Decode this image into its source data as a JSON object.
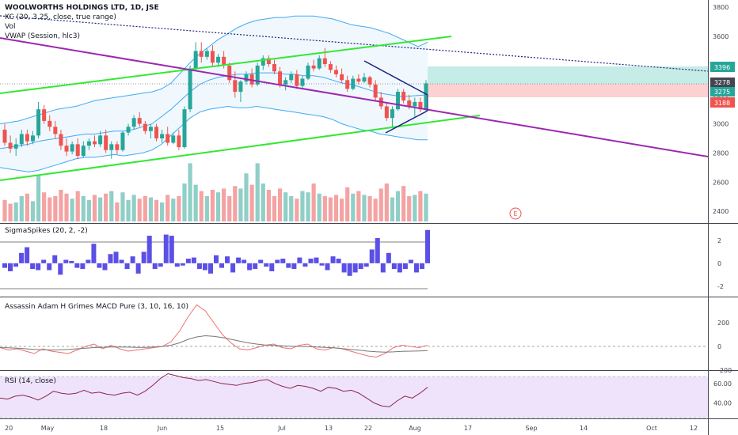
{
  "header": {
    "title": "WOOLWORTHS HOLDINGS LTD, 1D, JSE",
    "kc": "KC (20, 3.25, close, true range)",
    "vol": "Vol",
    "vwap": "VWAP (Session, hlc3)"
  },
  "panes": {
    "sigma": "SigmaSpikes (20, 2, -2)",
    "macd": "Assassin Adam H Grimes MACD Pure (3, 10, 16, 10)",
    "rsi": "RSI (14, close)"
  },
  "axes": {
    "price_ticks": [
      "3800",
      "3600",
      "3400",
      "3200",
      "3000",
      "2800",
      "2600",
      "2400"
    ],
    "sigma_ticks": [
      "2",
      "0",
      "-2"
    ],
    "macd_ticks": [
      "200",
      "0",
      "-200"
    ],
    "rsi_ticks": [
      "60.00",
      "40.00"
    ],
    "date_ticks": [
      "20",
      "May",
      "18",
      "Jun",
      "15",
      "Jul",
      "13",
      "22",
      "Aug",
      "17",
      "Sep",
      "14",
      "Oct",
      "12"
    ]
  },
  "price_badges": [
    "3396",
    "3278",
    "3275",
    "3188"
  ],
  "event_marker": "E",
  "colors": {
    "up": "#26a69a",
    "down": "#ef5350",
    "vol_up": "#8fcfc7",
    "vol_down": "#f4a3a3",
    "trend_green": "#33e833",
    "trend_purple": "#9c27b0",
    "kc": "#3fa9f5",
    "fill_target": "#c5ece6",
    "fill_stop": "#fbd1d1",
    "sigma": "#5b4fe6",
    "macd_red": "#f07070",
    "macd_gray": "#777777",
    "rsi_fill": "#efe3fb",
    "rsi_line": "#8e244d"
  },
  "chart_data": {
    "type": "candlestick",
    "symbol": "WOOLWORTHS HOLDINGS LTD",
    "interval": "1D",
    "exchange": "JSE",
    "ylim": [
      2330,
      3850
    ],
    "candles": [
      {
        "o": 2960,
        "h": 3000,
        "l": 2850,
        "c": 2870
      },
      {
        "o": 2870,
        "h": 2920,
        "l": 2800,
        "c": 2830
      },
      {
        "o": 2830,
        "h": 2900,
        "l": 2780,
        "c": 2860
      },
      {
        "o": 2860,
        "h": 2960,
        "l": 2840,
        "c": 2930
      },
      {
        "o": 2930,
        "h": 2960,
        "l": 2850,
        "c": 2880
      },
      {
        "o": 2880,
        "h": 2950,
        "l": 2860,
        "c": 2920
      },
      {
        "o": 2920,
        "h": 3150,
        "l": 2900,
        "c": 3100
      },
      {
        "o": 3100,
        "h": 3130,
        "l": 3000,
        "c": 3020
      },
      {
        "o": 3020,
        "h": 3060,
        "l": 2950,
        "c": 2980
      },
      {
        "o": 2980,
        "h": 3020,
        "l": 2900,
        "c": 2930
      },
      {
        "o": 2930,
        "h": 2960,
        "l": 2820,
        "c": 2850
      },
      {
        "o": 2850,
        "h": 2900,
        "l": 2780,
        "c": 2810
      },
      {
        "o": 2810,
        "h": 2880,
        "l": 2790,
        "c": 2860
      },
      {
        "o": 2860,
        "h": 2900,
        "l": 2760,
        "c": 2780
      },
      {
        "o": 2780,
        "h": 2880,
        "l": 2770,
        "c": 2850
      },
      {
        "o": 2850,
        "h": 2900,
        "l": 2820,
        "c": 2880
      },
      {
        "o": 2880,
        "h": 2920,
        "l": 2840,
        "c": 2860
      },
      {
        "o": 2860,
        "h": 2950,
        "l": 2840,
        "c": 2920
      },
      {
        "o": 2920,
        "h": 2960,
        "l": 2800,
        "c": 2820
      },
      {
        "o": 2820,
        "h": 2880,
        "l": 2760,
        "c": 2860
      },
      {
        "o": 2860,
        "h": 2880,
        "l": 2790,
        "c": 2820
      },
      {
        "o": 2820,
        "h": 2950,
        "l": 2810,
        "c": 2940
      },
      {
        "o": 2940,
        "h": 3000,
        "l": 2920,
        "c": 2980
      },
      {
        "o": 2980,
        "h": 3060,
        "l": 2960,
        "c": 3040
      },
      {
        "o": 3040,
        "h": 3080,
        "l": 2980,
        "c": 3000
      },
      {
        "o": 3000,
        "h": 3020,
        "l": 2930,
        "c": 2950
      },
      {
        "o": 2950,
        "h": 3000,
        "l": 2900,
        "c": 2980
      },
      {
        "o": 2980,
        "h": 3000,
        "l": 2880,
        "c": 2900
      },
      {
        "o": 2900,
        "h": 2960,
        "l": 2870,
        "c": 2930
      },
      {
        "o": 2930,
        "h": 2980,
        "l": 2850,
        "c": 2870
      },
      {
        "o": 2870,
        "h": 2940,
        "l": 2860,
        "c": 2920
      },
      {
        "o": 2920,
        "h": 2960,
        "l": 2820,
        "c": 2840
      },
      {
        "o": 2840,
        "h": 3120,
        "l": 2830,
        "c": 3100
      },
      {
        "o": 3100,
        "h": 3400,
        "l": 3080,
        "c": 3380
      },
      {
        "o": 3380,
        "h": 3560,
        "l": 3360,
        "c": 3500
      },
      {
        "o": 3500,
        "h": 3560,
        "l": 3420,
        "c": 3460
      },
      {
        "o": 3460,
        "h": 3520,
        "l": 3440,
        "c": 3500
      },
      {
        "o": 3500,
        "h": 3540,
        "l": 3400,
        "c": 3420
      },
      {
        "o": 3420,
        "h": 3480,
        "l": 3390,
        "c": 3460
      },
      {
        "o": 3460,
        "h": 3500,
        "l": 3380,
        "c": 3400
      },
      {
        "o": 3400,
        "h": 3420,
        "l": 3280,
        "c": 3300
      },
      {
        "o": 3300,
        "h": 3360,
        "l": 3180,
        "c": 3220
      },
      {
        "o": 3220,
        "h": 3300,
        "l": 3150,
        "c": 3290
      },
      {
        "o": 3290,
        "h": 3360,
        "l": 3270,
        "c": 3340
      },
      {
        "o": 3340,
        "h": 3380,
        "l": 3250,
        "c": 3270
      },
      {
        "o": 3270,
        "h": 3420,
        "l": 3260,
        "c": 3400
      },
      {
        "o": 3400,
        "h": 3470,
        "l": 3370,
        "c": 3450
      },
      {
        "o": 3450,
        "h": 3470,
        "l": 3390,
        "c": 3410
      },
      {
        "o": 3410,
        "h": 3440,
        "l": 3340,
        "c": 3360
      },
      {
        "o": 3360,
        "h": 3390,
        "l": 3250,
        "c": 3270
      },
      {
        "o": 3270,
        "h": 3320,
        "l": 3230,
        "c": 3300
      },
      {
        "o": 3300,
        "h": 3360,
        "l": 3280,
        "c": 3340
      },
      {
        "o": 3340,
        "h": 3370,
        "l": 3240,
        "c": 3260
      },
      {
        "o": 3260,
        "h": 3330,
        "l": 3240,
        "c": 3310
      },
      {
        "o": 3310,
        "h": 3420,
        "l": 3300,
        "c": 3400
      },
      {
        "o": 3400,
        "h": 3440,
        "l": 3360,
        "c": 3380
      },
      {
        "o": 3380,
        "h": 3470,
        "l": 3370,
        "c": 3450
      },
      {
        "o": 3450,
        "h": 3520,
        "l": 3390,
        "c": 3410
      },
      {
        "o": 3410,
        "h": 3430,
        "l": 3350,
        "c": 3370
      },
      {
        "o": 3370,
        "h": 3400,
        "l": 3320,
        "c": 3340
      },
      {
        "o": 3340,
        "h": 3380,
        "l": 3280,
        "c": 3300
      },
      {
        "o": 3300,
        "h": 3330,
        "l": 3220,
        "c": 3240
      },
      {
        "o": 3240,
        "h": 3330,
        "l": 3230,
        "c": 3310
      },
      {
        "o": 3310,
        "h": 3340,
        "l": 3270,
        "c": 3290
      },
      {
        "o": 3290,
        "h": 3350,
        "l": 3280,
        "c": 3320
      },
      {
        "o": 3320,
        "h": 3330,
        "l": 3250,
        "c": 3270
      },
      {
        "o": 3270,
        "h": 3300,
        "l": 3160,
        "c": 3180
      },
      {
        "o": 3180,
        "h": 3220,
        "l": 3100,
        "c": 3120
      },
      {
        "o": 3120,
        "h": 3140,
        "l": 3020,
        "c": 3040
      },
      {
        "o": 3040,
        "h": 3120,
        "l": 2980,
        "c": 3100
      },
      {
        "o": 3100,
        "h": 3240,
        "l": 3090,
        "c": 3220
      },
      {
        "o": 3220,
        "h": 3240,
        "l": 3140,
        "c": 3160
      },
      {
        "o": 3160,
        "h": 3200,
        "l": 3100,
        "c": 3120
      },
      {
        "o": 3120,
        "h": 3180,
        "l": 3050,
        "c": 3150
      },
      {
        "o": 3150,
        "h": 3180,
        "l": 3080,
        "c": 3100
      },
      {
        "o": 3100,
        "h": 3300,
        "l": 3090,
        "c": 3278
      }
    ],
    "volume": [
      34,
      28,
      30,
      40,
      44,
      32,
      72,
      46,
      38,
      40,
      50,
      44,
      36,
      48,
      40,
      34,
      42,
      38,
      44,
      48,
      30,
      46,
      34,
      42,
      36,
      40,
      38,
      34,
      30,
      42,
      36,
      40,
      60,
      92,
      58,
      48,
      40,
      50,
      46,
      52,
      40,
      56,
      52,
      76,
      58,
      92,
      60,
      50,
      40,
      52,
      46,
      40,
      36,
      48,
      46,
      60,
      44,
      40,
      38,
      42,
      36,
      54,
      44,
      48,
      42,
      40,
      36,
      52,
      60,
      38,
      48,
      56,
      40,
      42,
      48,
      44,
      62
    ],
    "keltner": {
      "upper": [
        3000,
        3010,
        3020,
        3040,
        3060,
        3080,
        3100,
        3110,
        3120,
        3140,
        3160,
        3170,
        3180,
        3190,
        3200,
        3210,
        3220,
        3240,
        3280,
        3350,
        3420,
        3480,
        3530,
        3580,
        3620,
        3660,
        3690,
        3710,
        3720,
        3730,
        3730,
        3740,
        3740,
        3740,
        3730,
        3720,
        3700,
        3680,
        3670,
        3660,
        3640,
        3620,
        3590,
        3560,
        3530,
        3560
      ],
      "middle": [
        2830,
        2840,
        2850,
        2860,
        2880,
        2890,
        2900,
        2910,
        2920,
        2930,
        2930,
        2940,
        2950,
        2950,
        2960,
        2980,
        3000,
        3050,
        3100,
        3160,
        3220,
        3270,
        3300,
        3320,
        3330,
        3340,
        3340,
        3350,
        3350,
        3350,
        3340,
        3340,
        3330,
        3330,
        3320,
        3300,
        3280,
        3270,
        3250,
        3230,
        3210,
        3200,
        3190,
        3190,
        3195,
        3200
      ],
      "lower": [
        2700,
        2690,
        2680,
        2670,
        2680,
        2700,
        2720,
        2740,
        2760,
        2770,
        2770,
        2780,
        2790,
        2780,
        2790,
        2800,
        2820,
        2860,
        2920,
        2980,
        3040,
        3080,
        3100,
        3110,
        3120,
        3110,
        3110,
        3120,
        3110,
        3100,
        3090,
        3080,
        3070,
        3060,
        3050,
        3030,
        3000,
        2980,
        2960,
        2950,
        2930,
        2920,
        2910,
        2900,
        2890,
        2890
      ]
    },
    "sigma_spikes": [
      -0.4,
      -0.7,
      -0.3,
      0.9,
      1.4,
      -0.5,
      -0.6,
      0.3,
      -0.6,
      0.7,
      -1.0,
      0.3,
      0.2,
      -0.4,
      -0.5,
      0.3,
      1.7,
      -0.4,
      -0.6,
      0.8,
      1.0,
      0.3,
      -0.5,
      0.6,
      -0.9,
      1.0,
      2.4,
      -0.5,
      -0.3,
      2.5,
      2.4,
      -0.3,
      -0.2,
      0.4,
      0.5,
      -0.5,
      -0.6,
      -0.9,
      0.7,
      -0.4,
      0.6,
      -0.8,
      0.5,
      0.3,
      -0.6,
      -0.5,
      0.3,
      -0.3,
      -0.7,
      0.3,
      0.4,
      -0.4,
      -0.5,
      0.5,
      -0.3,
      0.4,
      0.5,
      -0.2,
      -0.6,
      0.6,
      0.4,
      -0.8,
      -1.1,
      -0.8,
      -0.5,
      -0.3,
      1.2,
      2.2,
      -0.8,
      0.9,
      -0.5,
      -0.8,
      -0.5,
      0.3,
      -0.8,
      -0.5,
      2.9
    ],
    "sigma_ylim": [
      -2.7,
      3.3
    ],
    "macd_red": [
      -10,
      -30,
      -20,
      -40,
      -60,
      -20,
      -40,
      -50,
      -60,
      -30,
      0,
      20,
      -20,
      10,
      -20,
      -40,
      -30,
      -20,
      -10,
      0,
      40,
      130,
      250,
      350,
      300,
      200,
      100,
      30,
      -20,
      -30,
      -10,
      10,
      20,
      -10,
      -20,
      10,
      20,
      -20,
      -30,
      -10,
      -20,
      -40,
      -60,
      -80,
      -90,
      -60,
      -10,
      10,
      0,
      -10,
      10
    ],
    "macd_gray": [
      -10,
      -12,
      -15,
      -20,
      -25,
      -28,
      -30,
      -28,
      -25,
      -20,
      -15,
      -10,
      -8,
      -5,
      -5,
      -6,
      -8,
      -8,
      -5,
      0,
      10,
      30,
      60,
      80,
      90,
      85,
      75,
      60,
      45,
      30,
      20,
      12,
      8,
      5,
      2,
      0,
      -2,
      -5,
      -8,
      -12,
      -18,
      -25,
      -32,
      -40,
      -45,
      -48,
      -46,
      -42,
      -40,
      -38,
      -36
    ],
    "macd_ylim": [
      -200,
      200
    ],
    "rsi": [
      45,
      44,
      47,
      48,
      46,
      43,
      47,
      52,
      50,
      49,
      50,
      53,
      50,
      51,
      49,
      48,
      50,
      51,
      48,
      52,
      58,
      65,
      70,
      68,
      66,
      65,
      63,
      64,
      62,
      60,
      59,
      58,
      60,
      61,
      63,
      64,
      60,
      57,
      55,
      58,
      57,
      55,
      52,
      56,
      55,
      52,
      53,
      50,
      45,
      40,
      37,
      36,
      42,
      47,
      45,
      50,
      56
    ],
    "rsi_bands": [
      30,
      70
    ],
    "annotations": {
      "resistance_dotted": {
        "from": [
          0,
          3720
        ],
        "to": [
          1,
          3350
        ]
      },
      "channel_upper_green": {
        "from": [
          0,
          3230
        ],
        "to": [
          1,
          3580
        ]
      },
      "channel_lower_green": {
        "from": [
          0,
          2650
        ],
        "to": [
          1,
          3060
        ]
      },
      "purple_trend": {
        "from": [
          0,
          3580
        ],
        "to": [
          1,
          2790
        ]
      },
      "target_zone": [
        3278,
        3396
      ],
      "stop_zone": [
        3188,
        3278
      ]
    }
  }
}
